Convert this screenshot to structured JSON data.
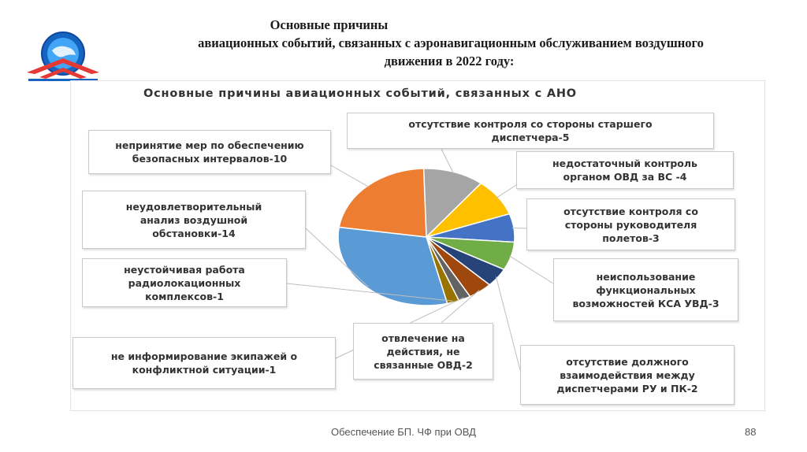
{
  "slide": {
    "title_line1": "Основные причины",
    "title_line2": "авиационных событий, связанных с аэронавигационным обслуживанием воздушного",
    "title_line3": "движения в 2022 году:",
    "footer": "Обеспечение БП. ЧФ при ОВД",
    "page_number": "88"
  },
  "colors": {
    "orange": "#ED7D31",
    "gray": "#A5A5A5",
    "yellow": "#FFC000",
    "blue": "#4472C4",
    "green": "#70AD47",
    "light_blue": "#5B9BD5",
    "dark_blue": "#264478",
    "dark_orange": "#9E480E",
    "dark_gray": "#636363",
    "dark_yellow": "#997300"
  },
  "chart_data": {
    "type": "pie",
    "title": "Основные причины авиационных событий, связанных с АНО",
    "legend": "none",
    "slices": [
      {
        "label": "отсутствие контроля со стороны старшего диспетчера",
        "value": 5,
        "display": "отсутствие контроля со стороны старшего диспетчера-5",
        "color": "#A5A5A5"
      },
      {
        "label": "недостаточный контроль органом ОВД за ВС",
        "value": 4,
        "display": "недостаточный контроль органом ОВД за ВС -4",
        "color": "#FFC000"
      },
      {
        "label": "отсутствие контроля со стороны руководителя полетов",
        "value": 3,
        "display": "отсутствие контроля со стороны руководителя полетов-3",
        "color": "#4472C4"
      },
      {
        "label": "неиспользование функциональных возможностей КСА УВД",
        "value": 3,
        "display": "неиспользование функциональных возможностей КСА УВД-3",
        "color": "#70AD47"
      },
      {
        "label": "отсутствие должного взаимодействия между диспетчерами РУ и ПК",
        "value": 2,
        "display": "отсутствие должного взаимодействия между диспетчерами РУ и ПК-2",
        "color": "#264478"
      },
      {
        "label": "отвлечение на действия, не связанные ОВД",
        "value": 2,
        "display": "отвлечение на действия, не связанные ОВД-2",
        "color": "#9E480E"
      },
      {
        "label": "не информирование экипажей о конфликтной ситуации",
        "value": 1,
        "display": "не информирование экипажей о конфликтной ситуации-1",
        "color": "#636363"
      },
      {
        "label": "неустойчивая работа радиолокационных комплексов",
        "value": 1,
        "display": "неустойчивая работа радиолокационных комплексов-1",
        "color": "#997300"
      },
      {
        "label": "неудовлетворительный анализ воздушной обстановки",
        "value": 14,
        "display": "неудовлетворительный анализ воздушной обстановки-14",
        "color": "#5B9BD5"
      },
      {
        "label": "непринятие мер по обеспечению безопасных интервалов",
        "value": 10,
        "display": "непринятие мер по обеспечению безопасных интервалов-10",
        "color": "#ED7D31"
      }
    ],
    "label_lines": {
      "top_center": [
        "отсутствие контроля со стороны старшего",
        "диспетчера-5"
      ],
      "right_1": [
        "недостаточный контроль",
        "органом ОВД за ВС -4"
      ],
      "right_2": [
        "отсутствие контроля со",
        "стороны руководителя",
        "полетов-3"
      ],
      "right_3": [
        "неиспользование",
        "функциональных",
        "возможностей КСА УВД-3"
      ],
      "right_4": [
        "отсутствие должного",
        "взаимодействия между",
        "диспетчерами РУ и ПК-2"
      ],
      "bottom_center": [
        "отвлечение на",
        "действия, не",
        "связанные ОВД-2"
      ],
      "left_4": [
        "не информирование экипажей о",
        "конфликтной ситуации-1"
      ],
      "left_3": [
        "неустойчивая работа",
        "радиолокационных",
        "комплексов-1"
      ],
      "left_2": [
        "неудовлетворительный",
        "анализ воздушной",
        "обстановки-14"
      ],
      "left_1": [
        "непринятие мер по обеспечению",
        "безопасных интервалов-10"
      ]
    }
  }
}
